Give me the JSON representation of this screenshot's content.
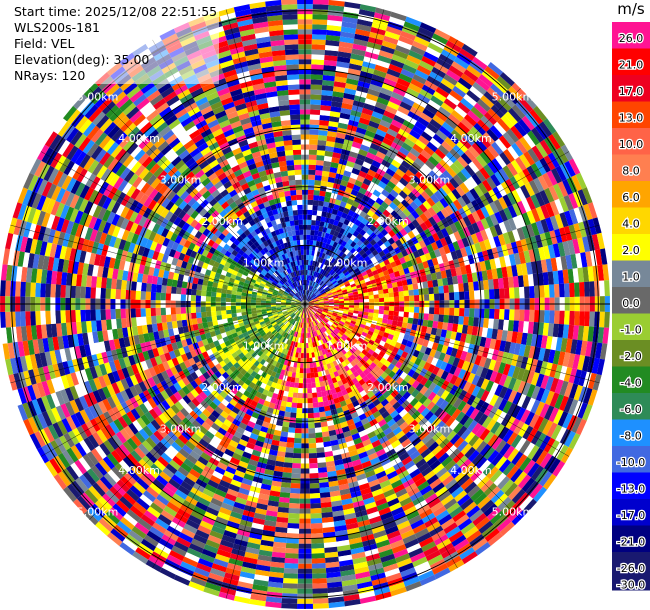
{
  "info": {
    "start_time": "Start time: 2025/12/08 22:51:55",
    "instrument": "WLS200s-181",
    "field": "Field: VEL",
    "elevation": "Elevation(deg): 35.00",
    "nrays": "NRays: 120"
  },
  "legend": {
    "unit": "m/s",
    "entries": [
      {
        "label": "26.0",
        "color": "#ff1493"
      },
      {
        "label": "21.0",
        "color": "#ff0000"
      },
      {
        "label": "17.0",
        "color": "#ee0020"
      },
      {
        "label": "13.0",
        "color": "#ff4500"
      },
      {
        "label": "10.0",
        "color": "#ff6347"
      },
      {
        "label": "8.0",
        "color": "#ff7f50"
      },
      {
        "label": "6.0",
        "color": "#ffa500"
      },
      {
        "label": "4.0",
        "color": "#ffd700"
      },
      {
        "label": "2.0",
        "color": "#ffff00"
      },
      {
        "label": "1.0",
        "color": "#778899"
      },
      {
        "label": "0.0",
        "color": "#696969"
      },
      {
        "label": "-1.0",
        "color": "#9acd32"
      },
      {
        "label": "-2.0",
        "color": "#6b8e23"
      },
      {
        "label": "-4.0",
        "color": "#228b22"
      },
      {
        "label": "-6.0",
        "color": "#2e8b57"
      },
      {
        "label": "-8.0",
        "color": "#1e90ff"
      },
      {
        "label": "-10.0",
        "color": "#4169e1"
      },
      {
        "label": "-13.0",
        "color": "#0000ff"
      },
      {
        "label": "-17.0",
        "color": "#0000cd"
      },
      {
        "label": "-21.0",
        "color": "#000080"
      },
      {
        "label": "-26.0",
        "color": "#191970"
      },
      {
        "label": "-30.0",
        "color": "#191970"
      }
    ]
  },
  "chart_data": {
    "type": "heatmap",
    "projection": "polar",
    "field": "VEL",
    "units": "m/s",
    "elevation_deg": 35.0,
    "n_rays": 120,
    "range_rings_km": [
      1.0,
      2.0,
      3.0,
      4.0,
      5.0
    ],
    "ring_labels": [
      "1.00km",
      "2.00km",
      "3.00km",
      "4.00km",
      "5.00km"
    ],
    "max_range_km": 5.2,
    "colorbar_min": -30.0,
    "colorbar_max": 26.0
  }
}
